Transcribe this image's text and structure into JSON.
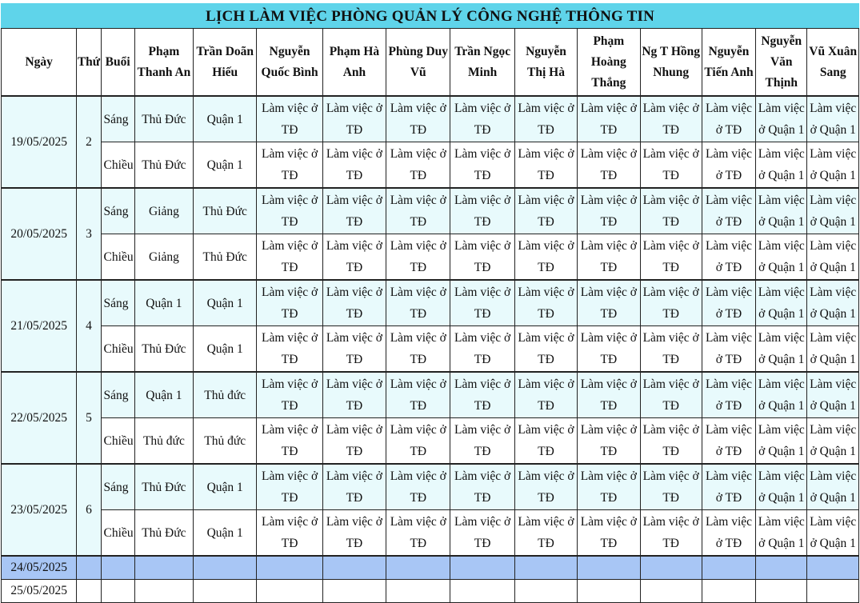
{
  "title": "LỊCH LÀM VIỆC PHÒNG QUẢN LÝ CÔNG NGHỆ THÔNG TIN",
  "headers": [
    "Ngày",
    "Thứ",
    "Buổi",
    "Phạm Thanh An",
    "Trần Doãn Hiếu",
    "Nguyễn Quốc Bình",
    "Phạm Hà Anh",
    "Phùng Duy Vũ",
    "Trần Ngọc Minh",
    "Nguyễn Thị Hà",
    "Phạm Hoàng Thắng",
    "Ng T Hồng Nhung",
    "Nguyễn Tiến Anh",
    "Nguyễn Văn Thịnh",
    "Vũ Xuân Sang"
  ],
  "days": [
    {
      "date": "19/05/2025",
      "thu": "2",
      "sessions": [
        {
          "buoi": "Sáng",
          "cells": [
            "Thủ Đức",
            "Quận 1",
            "Làm việc ở TĐ",
            "Làm việc ở TĐ",
            "Làm việc ở TĐ",
            "Làm việc ở TĐ",
            "Làm việc ở TĐ",
            "Làm việc ở TĐ",
            "Làm việc ở TĐ",
            "Làm việc ở TĐ",
            "Làm việc ở Quận 1",
            "Làm việc ở Quận 1"
          ]
        },
        {
          "buoi": "Chiều",
          "cells": [
            "Thủ Đức",
            "Quận 1",
            "Làm việc ở TĐ",
            "Làm việc ở TĐ",
            "Làm việc ở TĐ",
            "Làm việc ở TĐ",
            "Làm việc ở TĐ",
            "Làm việc ở TĐ",
            "Làm việc ở TĐ",
            "Làm việc ở TĐ",
            "Làm việc ở Quận 1",
            "Làm việc ở Quận 1"
          ]
        }
      ]
    },
    {
      "date": "20/05/2025",
      "thu": "3",
      "sessions": [
        {
          "buoi": "Sáng",
          "cells": [
            "Giảng",
            "Thủ Đức",
            "Làm việc ở TĐ",
            "Làm việc ở TĐ",
            "Làm việc ở TĐ",
            "Làm việc ở TĐ",
            "Làm việc ở TĐ",
            "Làm việc ở TĐ",
            "Làm việc ở TĐ",
            "Làm việc ở TĐ",
            "Làm việc ở Quận 1",
            "Làm việc ở Quận 1"
          ]
        },
        {
          "buoi": "Chiều",
          "cells": [
            "Giảng",
            "Thủ Đức",
            "Làm việc ở TĐ",
            "Làm việc ở TĐ",
            "Làm việc ở TĐ",
            "Làm việc ở TĐ",
            "Làm việc ở TĐ",
            "Làm việc ở TĐ",
            "Làm việc ở TĐ",
            "Làm việc ở TĐ",
            "Làm việc ở Quận 1",
            "Làm việc ở Quận 1"
          ]
        }
      ]
    },
    {
      "date": "21/05/2025",
      "thu": "4",
      "sessions": [
        {
          "buoi": "Sáng",
          "cells": [
            "Quận 1",
            "Quận 1",
            "Làm việc ở TĐ",
            "Làm việc ở TĐ",
            "Làm việc ở TĐ",
            "Làm việc ở TĐ",
            "Làm việc ở TĐ",
            "Làm việc ở TĐ",
            "Làm việc ở TĐ",
            "Làm việc ở TĐ",
            "Làm việc ở Quận 1",
            "Làm việc ở Quận 1"
          ]
        },
        {
          "buoi": "Chiều",
          "cells": [
            "Thủ Đức",
            "Quận 1",
            "Làm việc ở TĐ",
            "Làm việc ở TĐ",
            "Làm việc ở TĐ",
            "Làm việc ở TĐ",
            "Làm việc ở TĐ",
            "Làm việc ở TĐ",
            "Làm việc ở TĐ",
            "Làm việc ở TĐ",
            "Làm việc ở Quận 1",
            "Làm việc ở Quận 1"
          ]
        }
      ]
    },
    {
      "date": "22/05/2025",
      "thu": "5",
      "sessions": [
        {
          "buoi": "Sáng",
          "cells": [
            "Quận 1",
            "Thủ đức",
            "Làm việc ở TĐ",
            "Làm việc ở TĐ",
            "Làm việc ở TĐ",
            "Làm việc ở TĐ",
            "Làm việc ở TĐ",
            "Làm việc ở TĐ",
            "Làm việc ở TĐ",
            "Làm việc ở TĐ",
            "Làm việc ở Quận 1",
            "Làm việc ở Quận 1"
          ]
        },
        {
          "buoi": "Chiều",
          "cells": [
            "Thủ đức",
            "Thủ đức",
            "Làm việc ở TĐ",
            "Làm việc ở TĐ",
            "Làm việc ở TĐ",
            "Làm việc ở TĐ",
            "Làm việc ở TĐ",
            "Làm việc ở TĐ",
            "Làm việc ở TĐ",
            "Làm việc ở TĐ",
            "Làm việc ở Quận 1",
            "Làm việc ở Quận 1"
          ]
        }
      ]
    },
    {
      "date": "23/05/2025",
      "thu": "6",
      "sessions": [
        {
          "buoi": "Sáng",
          "cells": [
            "Thủ Đức",
            "Quận 1",
            "Làm việc ở TĐ",
            "Làm việc ở TĐ",
            "Làm việc ở TĐ",
            "Làm việc ở TĐ",
            "Làm việc ở TĐ",
            "Làm việc ở TĐ",
            "Làm việc ở TĐ",
            "Làm việc ở TĐ",
            "Làm việc ở Quận 1",
            "Làm việc ở Quận 1"
          ]
        },
        {
          "buoi": "Chiều",
          "cells": [
            "Thủ Đức",
            "Quận 1",
            "Làm việc ở TĐ",
            "Làm việc ở TĐ",
            "Làm việc ở TĐ",
            "Làm việc ở TĐ",
            "Làm việc ở TĐ",
            "Làm việc ở TĐ",
            "Làm việc ở TĐ",
            "Làm việc ở TĐ",
            "Làm việc ở Quận 1",
            "Làm việc ở Quận 1"
          ]
        }
      ]
    }
  ],
  "weekend": [
    "24/05/2025",
    "25/05/2025"
  ],
  "colors": {
    "title_bg": "#5fd4ea",
    "sang_bg": "#e8fafc",
    "weekend_highlight": "#a8c6f5"
  }
}
